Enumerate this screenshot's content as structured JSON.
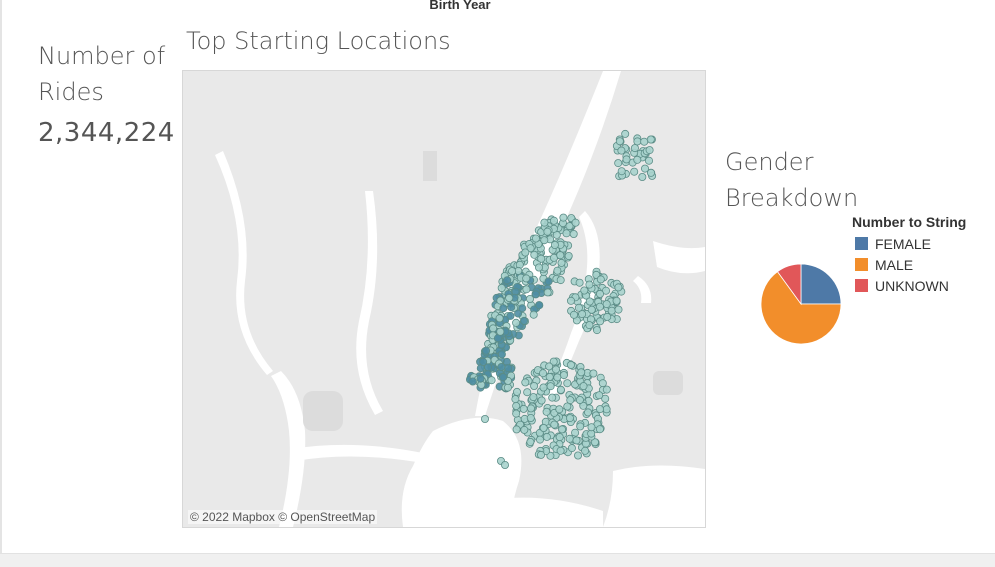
{
  "header": {
    "caption": "Birth Year"
  },
  "kpi": {
    "title": "Number of Rides",
    "value": "2,344,224"
  },
  "map": {
    "title": "Top Starting Locations",
    "attribution": "© 2022 Mapbox © OpenStreetMap",
    "land_color": "#e9e9e9",
    "water_color": "#ffffff",
    "marker_fill_light": "#a8d3cd",
    "marker_fill_dark": "#4f8ea3",
    "marker_stroke": "#5b8c86"
  },
  "gender": {
    "title": "Gender Breakdown",
    "legend_title": "Number to String",
    "categories": [
      {
        "label": "FEMALE",
        "color": "#4e79a7"
      },
      {
        "label": "MALE",
        "color": "#f28e2b"
      },
      {
        "label": "UNKNOWN",
        "color": "#e15759"
      }
    ]
  },
  "chart_data": {
    "type": "pie",
    "title": "Gender Breakdown",
    "categories": [
      "FEMALE",
      "MALE",
      "UNKNOWN"
    ],
    "values": [
      0.25,
      0.65,
      0.1
    ],
    "colors": [
      "#4e79a7",
      "#f28e2b",
      "#e15759"
    ],
    "legend": "top-right"
  }
}
